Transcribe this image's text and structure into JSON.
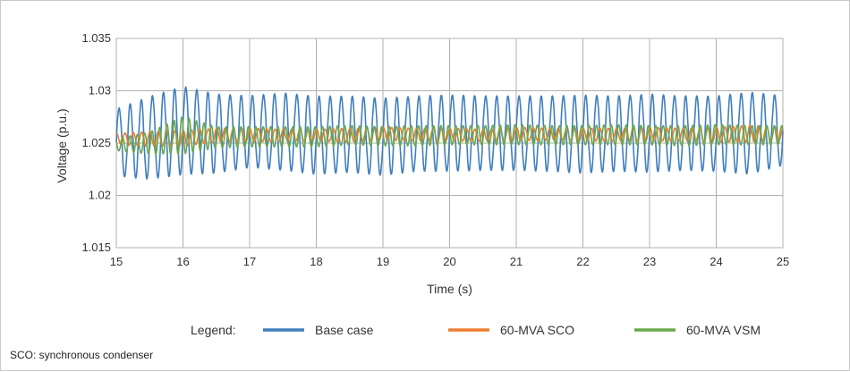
{
  "chart_data": {
    "type": "line",
    "xlabel": "Time (s)",
    "ylabel": "Voltage (p.u.)",
    "xlim": [
      15,
      25
    ],
    "ylim": [
      1.015,
      1.035
    ],
    "x_ticks": [
      "15",
      "16",
      "17",
      "18",
      "19",
      "20",
      "21",
      "22",
      "23",
      "24",
      "25"
    ],
    "y_ticks": [
      "1.015",
      "1.02",
      "1.025",
      "1.03",
      "1.035"
    ],
    "grid": true,
    "legend_title": "Legend:",
    "legend_position": "bottom",
    "series": [
      {
        "name": "Base case",
        "color": "#3f7fbf",
        "approx_oscillation_hz": 6.0,
        "x": [
          15,
          15.5,
          16,
          16.5,
          17,
          17.5,
          18,
          18.5,
          19,
          19.5,
          20,
          20.5,
          21,
          21.5,
          22,
          22.5,
          23,
          23.5,
          24,
          24.5,
          25
        ],
        "max": [
          1.0287,
          1.03,
          1.031,
          1.0302,
          1.03,
          1.0303,
          1.03,
          1.03,
          1.0298,
          1.03,
          1.0301,
          1.03,
          1.03,
          1.03,
          1.0301,
          1.03,
          1.0302,
          1.03,
          1.03,
          1.0304,
          1.03
        ],
        "min": [
          1.0214,
          1.021,
          1.0214,
          1.0216,
          1.0222,
          1.0219,
          1.0215,
          1.0217,
          1.0214,
          1.0218,
          1.0218,
          1.0219,
          1.0219,
          1.0218,
          1.0216,
          1.0218,
          1.0217,
          1.0219,
          1.0218,
          1.0215,
          1.0224
        ]
      },
      {
        "name": "60-MVA SCO",
        "color": "#ed7d31",
        "approx_oscillation_hz": 8.0,
        "x": [
          15,
          15.5,
          16,
          16.5,
          17,
          17.5,
          18,
          18.5,
          19,
          19.5,
          20,
          20.5,
          21,
          21.5,
          22,
          22.5,
          23,
          23.5,
          24,
          24.5,
          25
        ],
        "max": [
          1.026,
          1.0262,
          1.0263,
          1.0265,
          1.0265,
          1.0264,
          1.0264,
          1.0265,
          1.0266,
          1.0265,
          1.0265,
          1.0264,
          1.0266,
          1.0265,
          1.0265,
          1.0265,
          1.0266,
          1.0265,
          1.0266,
          1.0268,
          1.0266
        ],
        "min": [
          1.0248,
          1.0246,
          1.0246,
          1.025,
          1.025,
          1.0251,
          1.0251,
          1.025,
          1.0252,
          1.0251,
          1.0251,
          1.0251,
          1.0251,
          1.0252,
          1.0251,
          1.0251,
          1.0251,
          1.0251,
          1.025,
          1.025,
          1.0252
        ]
      },
      {
        "name": "60-MVA VSM",
        "color": "#6aa84f",
        "approx_oscillation_hz": 9.0,
        "x": [
          15,
          15.5,
          16,
          16.5,
          17,
          17.5,
          18,
          18.5,
          19,
          19.5,
          20,
          20.5,
          21,
          21.5,
          22,
          22.5,
          23,
          23.5,
          24,
          24.5,
          25
        ],
        "max": [
          1.0255,
          1.0262,
          1.0278,
          1.0267,
          1.0267,
          1.0267,
          1.0267,
          1.0268,
          1.0267,
          1.0268,
          1.0268,
          1.0268,
          1.0269,
          1.0268,
          1.0268,
          1.0269,
          1.0268,
          1.0268,
          1.0269,
          1.0268,
          1.0268
        ],
        "min": [
          1.0242,
          1.0238,
          1.0237,
          1.0244,
          1.0245,
          1.0245,
          1.0245,
          1.0247,
          1.0246,
          1.0246,
          1.0247,
          1.0247,
          1.0247,
          1.0247,
          1.0247,
          1.0247,
          1.0247,
          1.0246,
          1.0247,
          1.0247,
          1.0247
        ]
      }
    ]
  },
  "footnote": "SCO: synchronous condenser"
}
